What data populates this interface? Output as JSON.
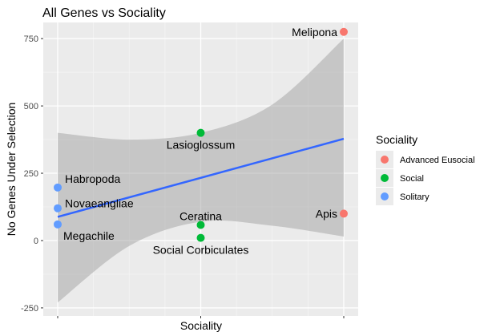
{
  "chart_data": {
    "type": "scatter",
    "title": "All Genes vs Sociality",
    "xlabel": "Sociality",
    "ylabel": "No Genes Under Selection",
    "x_tick_labels": [],
    "x_positions": [
      0,
      1,
      2
    ],
    "y_ticks": [
      -250,
      0,
      250,
      500,
      750
    ],
    "ylim": [
      -280,
      810
    ],
    "grid": true,
    "legend": {
      "title": "Sociality",
      "position": "right",
      "entries": [
        {
          "label": "Advanced Eusocial",
          "color": "#F8766D"
        },
        {
          "label": "Social",
          "color": "#00BA38"
        },
        {
          "label": "Solitary",
          "color": "#619CFF"
        }
      ]
    },
    "points": [
      {
        "label": "Melipona",
        "x": 2,
        "y": 775,
        "group": "Advanced Eusocial",
        "label_side": "left"
      },
      {
        "label": "Apis",
        "x": 2,
        "y": 100,
        "group": "Advanced Eusocial",
        "label_side": "left"
      },
      {
        "label": "Lasioglossum",
        "x": 1,
        "y": 400,
        "group": "Social",
        "label_side": "below"
      },
      {
        "label": "Ceratina",
        "x": 1,
        "y": 58,
        "group": "Social",
        "label_side": "above"
      },
      {
        "label": "Social Corbiculates",
        "x": 1,
        "y": 10,
        "group": "Social",
        "label_side": "below"
      },
      {
        "label": "Habropoda",
        "x": 0,
        "y": 197,
        "group": "Solitary",
        "label_side": "upper-right"
      },
      {
        "label": "Novaeangliae",
        "x": 0,
        "y": 120,
        "group": "Solitary",
        "label_side": "right"
      },
      {
        "label": "Megachile",
        "x": 0,
        "y": 60,
        "group": "Solitary",
        "label_side": "lower-right"
      }
    ],
    "regression": {
      "x": [
        0,
        2
      ],
      "y": [
        88,
        378
      ],
      "color": "#3366FF"
    },
    "confidence_band": {
      "x": [
        0,
        0.5,
        1,
        1.5,
        2
      ],
      "upper": [
        400,
        375,
        400,
        505,
        750
      ],
      "lower": [
        -230,
        -20,
        70,
        55,
        15
      ]
    }
  }
}
